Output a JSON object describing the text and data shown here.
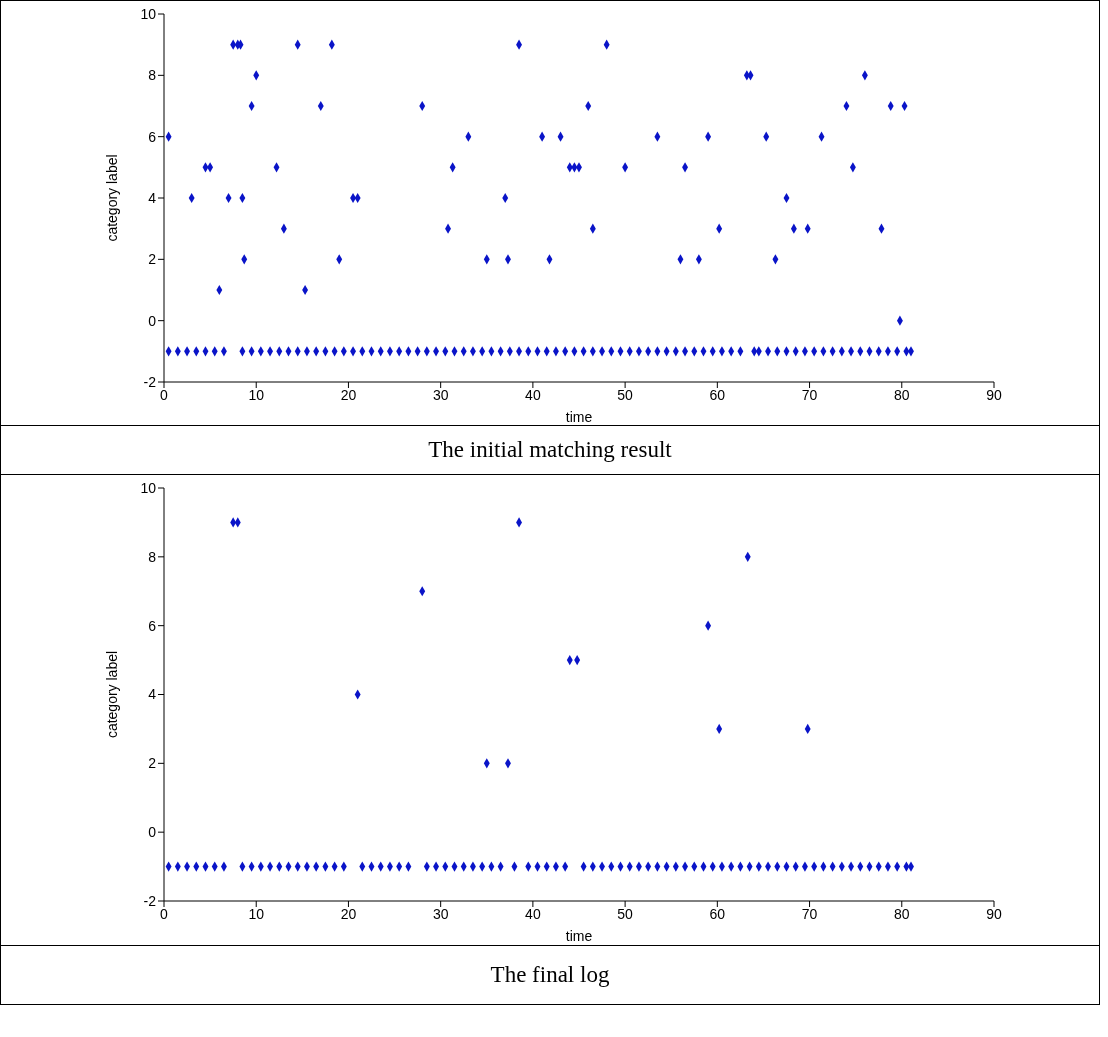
{
  "chart_data": [
    {
      "type": "scatter",
      "xlabel": "time",
      "ylabel": "category label",
      "annotations": [
        "The initial matching result"
      ],
      "color": "#0a14c8",
      "marker": "diamond",
      "xlim": [
        0,
        90
      ],
      "xticks": [
        0,
        10,
        20,
        30,
        40,
        50,
        60,
        70,
        80,
        90
      ],
      "ylim": [
        -2,
        10
      ],
      "yticks": [
        -2,
        0,
        2,
        4,
        6,
        8,
        10
      ],
      "x": [
        0.5,
        3,
        4.5,
        5,
        6,
        7,
        7.5,
        8,
        8.3,
        8.5,
        8.7,
        9.5,
        10,
        12.2,
        13,
        14.5,
        15.3,
        17,
        18.2,
        19,
        20.5,
        21,
        28,
        30.8,
        31.3,
        33,
        35,
        37,
        37.3,
        38.5,
        41,
        41.8,
        43,
        44,
        44.5,
        45,
        46,
        46.5,
        48,
        50,
        53.5,
        56,
        56.5,
        58,
        59,
        60.2,
        63.2,
        63.6,
        65.3,
        66.3,
        67.5,
        68.3,
        69.8,
        71.3,
        74,
        74.7,
        76,
        77.8,
        78.8,
        79.8,
        80.3,
        0.5,
        1.5,
        2.5,
        3.5,
        4.5,
        5.5,
        6.5,
        8.5,
        9.5,
        10.5,
        11.5,
        12.5,
        13.5,
        14.5,
        15.5,
        16.5,
        17.5,
        18.5,
        19.5,
        20.5,
        21.5,
        22.5,
        23.5,
        24.5,
        25.5,
        26.5,
        27.5,
        28.5,
        29.5,
        30.5,
        31.5,
        32.5,
        33.5,
        34.5,
        35.5,
        36.5,
        37.5,
        38.5,
        39.5,
        40.5,
        41.5,
        42.5,
        43.5,
        44.5,
        45.5,
        46.5,
        47.5,
        48.5,
        49.5,
        50.5,
        51.5,
        52.5,
        53.5,
        54.5,
        55.5,
        56.5,
        57.5,
        58.5,
        59.5,
        60.5,
        61.5,
        62.5,
        64,
        64.5,
        65.5,
        66.5,
        67.5,
        68.5,
        69.5,
        70.5,
        71.5,
        72.5,
        73.5,
        74.5,
        75.5,
        76.5,
        77.5,
        78.5,
        79.5,
        80.5,
        81
      ],
      "values": [
        6,
        4,
        5,
        5,
        1,
        4,
        9,
        9,
        9,
        4,
        2,
        7,
        8,
        5,
        3,
        9,
        1,
        7,
        9,
        2,
        4,
        4,
        7,
        3,
        5,
        6,
        2,
        4,
        2,
        9,
        6,
        2,
        6,
        5,
        5,
        5,
        7,
        3,
        9,
        5,
        6,
        2,
        5,
        2,
        6,
        3,
        8,
        8,
        6,
        2,
        4,
        3,
        3,
        6,
        7,
        5,
        8,
        3,
        7,
        0,
        7,
        -1,
        -1,
        -1,
        -1,
        -1,
        -1,
        -1,
        -1,
        -1,
        -1,
        -1,
        -1,
        -1,
        -1,
        -1,
        -1,
        -1,
        -1,
        -1,
        -1,
        -1,
        -1,
        -1,
        -1,
        -1,
        -1,
        -1,
        -1,
        -1,
        -1,
        -1,
        -1,
        -1,
        -1,
        -1,
        -1,
        -1,
        -1,
        -1,
        -1,
        -1,
        -1,
        -1,
        -1,
        -1,
        -1,
        -1,
        -1,
        -1,
        -1,
        -1,
        -1,
        -1,
        -1,
        -1,
        -1,
        -1,
        -1,
        -1,
        -1,
        -1,
        -1,
        -1,
        -1,
        -1,
        -1,
        -1,
        -1,
        -1,
        -1,
        -1,
        -1,
        -1,
        -1,
        -1,
        -1,
        -1,
        -1,
        -1,
        -1,
        -1
      ]
    },
    {
      "type": "scatter",
      "xlabel": "time",
      "ylabel": "category label",
      "annotations": [
        "The final log"
      ],
      "color": "#0a14c8",
      "marker": "diamond",
      "xlim": [
        0,
        90
      ],
      "xticks": [
        0,
        10,
        20,
        30,
        40,
        50,
        60,
        70,
        80,
        90
      ],
      "ylim": [
        -2,
        10
      ],
      "yticks": [
        -2,
        0,
        2,
        4,
        6,
        8,
        10
      ],
      "x": [
        7.5,
        8,
        21,
        28,
        35,
        37.3,
        38.5,
        44,
        44.8,
        59,
        60.2,
        63.3,
        69.8,
        0.5,
        1.5,
        2.5,
        3.5,
        4.5,
        5.5,
        6.5,
        8.5,
        9.5,
        10.5,
        11.5,
        12.5,
        13.5,
        14.5,
        15.5,
        16.5,
        17.5,
        18.5,
        19.5,
        21.5,
        22.5,
        23.5,
        24.5,
        25.5,
        26.5,
        28.5,
        29.5,
        30.5,
        31.5,
        32.5,
        33.5,
        34.5,
        35.5,
        36.5,
        38,
        39.5,
        40.5,
        41.5,
        42.5,
        43.5,
        45.5,
        46.5,
        47.5,
        48.5,
        49.5,
        50.5,
        51.5,
        52.5,
        53.5,
        54.5,
        55.5,
        56.5,
        57.5,
        58.5,
        59.5,
        60.5,
        61.5,
        62.5,
        63.5,
        64.5,
        65.5,
        66.5,
        67.5,
        68.5,
        69.5,
        70.5,
        71.5,
        72.5,
        73.5,
        74.5,
        75.5,
        76.5,
        77.5,
        78.5,
        79.5,
        80.5,
        81
      ],
      "values": [
        9,
        9,
        4,
        7,
        2,
        2,
        9,
        5,
        5,
        6,
        3,
        8,
        3,
        -1,
        -1,
        -1,
        -1,
        -1,
        -1,
        -1,
        -1,
        -1,
        -1,
        -1,
        -1,
        -1,
        -1,
        -1,
        -1,
        -1,
        -1,
        -1,
        -1,
        -1,
        -1,
        -1,
        -1,
        -1,
        -1,
        -1,
        -1,
        -1,
        -1,
        -1,
        -1,
        -1,
        -1,
        -1,
        -1,
        -1,
        -1,
        -1,
        -1,
        -1,
        -1,
        -1,
        -1,
        -1,
        -1,
        -1,
        -1,
        -1,
        -1,
        -1,
        -1,
        -1,
        -1,
        -1,
        -1,
        -1,
        -1,
        -1,
        -1,
        -1,
        -1,
        -1,
        -1,
        -1,
        -1,
        -1,
        -1,
        -1,
        -1,
        -1,
        -1,
        -1,
        -1,
        -1,
        -1,
        -1
      ]
    }
  ]
}
